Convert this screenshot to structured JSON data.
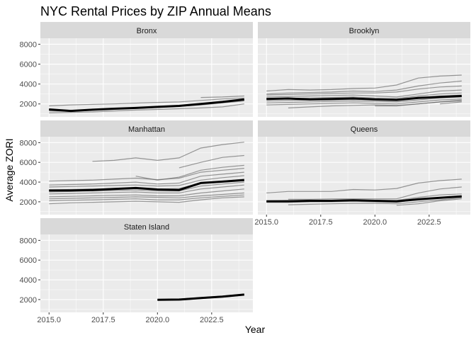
{
  "chart_data": {
    "type": "line",
    "title": "NYC Rental Prices by ZIP Annual Means",
    "xlabel": "Year",
    "ylabel": "Average ZORI",
    "xlim": [
      2014.6,
      2024.4
    ],
    "ylim": [
      700,
      8600
    ],
    "x_ticks": [
      2015,
      2017.5,
      2020,
      2022.5
    ],
    "x_tick_labels": [
      "2015.0",
      "2017.5",
      "2020.0",
      "2022.5"
    ],
    "y_ticks": [
      2000,
      4000,
      6000,
      8000
    ],
    "y_tick_labels": [
      "2000",
      "4000",
      "6000",
      "8000"
    ],
    "colors": {
      "panel_bg": "#ebebeb",
      "strip_bg": "#d9d9d9",
      "grid_major": "#ffffff",
      "zip_line": "#595959",
      "mean_line": "#000000"
    },
    "facets": [
      {
        "name": "Bronx",
        "zip_series": [
          {
            "x": [
              2015,
              2016,
              2017,
              2018,
              2019,
              2020,
              2021,
              2022,
              2023,
              2024
            ],
            "y": [
              1800,
              1900,
              1950,
              2000,
              2080,
              2150,
              2200,
              2350,
              2500,
              2600
            ]
          },
          {
            "x": [
              2015,
              2016,
              2017,
              2018,
              2019,
              2020,
              2021,
              2022,
              2023,
              2024
            ],
            "y": [
              1100,
              1150,
              1200,
              1300,
              1380,
              1450,
              1520,
              1600,
              1700,
              2000
            ]
          },
          {
            "x": [
              2015,
              2016,
              2017,
              2018,
              2019,
              2020,
              2021,
              2022,
              2023,
              2024
            ],
            "y": [
              1300,
              1250,
              1400,
              1500,
              1550,
              1650,
              1750,
              1900,
              2100,
              2300
            ]
          },
          {
            "x": [
              2022,
              2023,
              2024
            ],
            "y": [
              2650,
              2700,
              2800
            ]
          }
        ],
        "mean": {
          "x": [
            2015,
            2016,
            2017,
            2018,
            2019,
            2020,
            2021,
            2022,
            2023,
            2024
          ],
          "y": [
            1450,
            1300,
            1420,
            1520,
            1600,
            1700,
            1800,
            2000,
            2200,
            2450
          ]
        }
      },
      {
        "name": "Brooklyn",
        "zip_series": [
          {
            "x": [
              2015,
              2016,
              2017,
              2018,
              2019,
              2020,
              2021,
              2022,
              2023,
              2024
            ],
            "y": [
              3300,
              3450,
              3400,
              3450,
              3550,
              3600,
              3900,
              4600,
              4800,
              4900
            ]
          },
          {
            "x": [
              2015,
              2016,
              2017,
              2018,
              2019,
              2020,
              2021,
              2022,
              2023,
              2024
            ],
            "y": [
              3000,
              3100,
              3150,
              3200,
              3300,
              3250,
              3400,
              3800,
              4100,
              4300
            ]
          },
          {
            "x": [
              2015,
              2016,
              2017,
              2018,
              2019,
              2020,
              2021,
              2022,
              2023,
              2024
            ],
            "y": [
              2900,
              2950,
              3000,
              3050,
              3100,
              3100,
              3200,
              3500,
              3700,
              3800
            ]
          },
          {
            "x": [
              2015,
              2016,
              2017,
              2018,
              2019,
              2020,
              2021,
              2022,
              2023,
              2024
            ],
            "y": [
              2700,
              2750,
              2800,
              2850,
              2900,
              2800,
              2700,
              3000,
              3300,
              3400
            ]
          },
          {
            "x": [
              2015,
              2016,
              2017,
              2018,
              2019,
              2020,
              2021,
              2022,
              2023,
              2024
            ],
            "y": [
              2500,
              2550,
              2600,
              2650,
              2700,
              2600,
              2550,
              2800,
              3000,
              3100
            ]
          },
          {
            "x": [
              2015,
              2016,
              2017,
              2018,
              2019,
              2020,
              2021,
              2022,
              2023,
              2024
            ],
            "y": [
              2300,
              2350,
              2400,
              2400,
              2450,
              2400,
              2350,
              2600,
              2800,
              2900
            ]
          },
          {
            "x": [
              2015,
              2016,
              2017,
              2018,
              2019,
              2020,
              2021,
              2022,
              2023,
              2024
            ],
            "y": [
              2100,
              2150,
              2200,
              2250,
              2300,
              2250,
              2200,
              2400,
              2600,
              2700
            ]
          },
          {
            "x": [
              2015,
              2016,
              2017,
              2018,
              2019,
              2020,
              2021,
              2022,
              2023,
              2024
            ],
            "y": [
              1900,
              1950,
              2000,
              2050,
              2100,
              2050,
              2000,
              2200,
              2400,
              2500
            ]
          },
          {
            "x": [
              2016,
              2017,
              2018,
              2019,
              2020,
              2021,
              2022,
              2023,
              2024
            ],
            "y": [
              1600,
              1700,
              1800,
              1850,
              1900,
              1850,
              2000,
              2200,
              2300
            ]
          },
          {
            "x": [
              2020,
              2021,
              2022,
              2023,
              2024
            ],
            "y": [
              1800,
              1800,
              2000,
              2200,
              2400
            ]
          },
          {
            "x": [
              2023,
              2024
            ],
            "y": [
              2000,
              2200
            ]
          }
        ],
        "mean": {
          "x": [
            2015,
            2016,
            2017,
            2018,
            2019,
            2020,
            2021,
            2022,
            2023,
            2024
          ],
          "y": [
            2500,
            2550,
            2450,
            2500,
            2550,
            2450,
            2400,
            2600,
            2700,
            2800
          ]
        }
      },
      {
        "name": "Manhattan",
        "zip_series": [
          {
            "x": [
              2017,
              2018,
              2019,
              2020,
              2021,
              2022,
              2023,
              2024
            ],
            "y": [
              6100,
              6200,
              6450,
              6200,
              6450,
              7450,
              7800,
              8050
            ]
          },
          {
            "x": [
              2021,
              2022,
              2023,
              2024
            ],
            "y": [
              5450,
              6000,
              6500,
              6700
            ]
          },
          {
            "x": [
              2019,
              2020,
              2021,
              2022,
              2023,
              2024
            ],
            "y": [
              4600,
              4200,
              4500,
              5200,
              5500,
              5700
            ]
          },
          {
            "x": [
              2015,
              2016,
              2017,
              2018,
              2019,
              2020,
              2021,
              2022,
              2023,
              2024
            ],
            "y": [
              4100,
              4150,
              4200,
              4300,
              4400,
              4250,
              4400,
              5000,
              5200,
              5400
            ]
          },
          {
            "x": [
              2015,
              2016,
              2017,
              2018,
              2019,
              2020,
              2021,
              2022,
              2023,
              2024
            ],
            "y": [
              3700,
              3750,
              3800,
              3900,
              4000,
              3800,
              3900,
              4600,
              4800,
              5000
            ]
          },
          {
            "x": [
              2015,
              2016,
              2017,
              2018,
              2019,
              2020,
              2021,
              2022,
              2023,
              2024
            ],
            "y": [
              3500,
              3550,
              3600,
              3650,
              3700,
              3600,
              3650,
              4200,
              4450,
              4650
            ]
          },
          {
            "x": [
              2015,
              2016,
              2017,
              2018,
              2019,
              2020,
              2021,
              2022,
              2023,
              2024
            ],
            "y": [
              3200,
              3250,
              3300,
              3350,
              3400,
              3300,
              3350,
              3900,
              4100,
              4300
            ]
          },
          {
            "x": [
              2015,
              2016,
              2017,
              2018,
              2019,
              2020,
              2021,
              2022,
              2023,
              2024
            ],
            "y": [
              3000,
              3050,
              3100,
              3150,
              3200,
              3100,
              3100,
              3600,
              3800,
              4000
            ]
          },
          {
            "x": [
              2015,
              2016,
              2017,
              2018,
              2019,
              2020,
              2021,
              2022,
              2023,
              2024
            ],
            "y": [
              2800,
              2850,
              2900,
              2950,
              3000,
              2900,
              2900,
              3300,
              3500,
              3700
            ]
          },
          {
            "x": [
              2015,
              2016,
              2017,
              2018,
              2019,
              2020,
              2021,
              2022,
              2023,
              2024
            ],
            "y": [
              2500,
              2550,
              2600,
              2650,
              2700,
              2600,
              2600,
              2900,
              3100,
              3300
            ]
          },
          {
            "x": [
              2015,
              2016,
              2017,
              2018,
              2019,
              2020,
              2021,
              2022,
              2023,
              2024
            ],
            "y": [
              2300,
              2350,
              2400,
              2450,
              2500,
              2450,
              2400,
              2600,
              2750,
              2900
            ]
          },
          {
            "x": [
              2015,
              2016,
              2017,
              2018,
              2019,
              2020,
              2021,
              2022,
              2023,
              2024
            ],
            "y": [
              2100,
              2150,
              2200,
              2250,
              2300,
              2200,
              2200,
              2400,
              2550,
              2700
            ]
          },
          {
            "x": [
              2015,
              2016,
              2017,
              2018,
              2019,
              2020,
              2021,
              2022,
              2023,
              2024
            ],
            "y": [
              1800,
              1900,
              1950,
              2000,
              2050,
              2000,
              1950,
              2200,
              2400,
              2500
            ]
          }
        ],
        "mean": {
          "x": [
            2015,
            2016,
            2017,
            2018,
            2019,
            2020,
            2021,
            2022,
            2023,
            2024
          ],
          "y": [
            3150,
            3150,
            3200,
            3300,
            3400,
            3250,
            3200,
            3900,
            4050,
            4200
          ]
        }
      },
      {
        "name": "Queens",
        "zip_series": [
          {
            "x": [
              2015,
              2016,
              2017,
              2018,
              2019,
              2020,
              2021,
              2022,
              2023,
              2024
            ],
            "y": [
              2900,
              3050,
              3050,
              3050,
              3250,
              3200,
              3350,
              3900,
              4150,
              4300
            ]
          },
          {
            "x": [
              2016,
              2017,
              2018,
              2019,
              2020,
              2021,
              2022,
              2023,
              2024
            ],
            "y": [
              2250,
              2250,
              2300,
              2300,
              2300,
              2300,
              2900,
              3300,
              3500
            ]
          },
          {
            "x": [
              2015,
              2016,
              2017,
              2018,
              2019,
              2020,
              2021,
              2022,
              2023,
              2024
            ],
            "y": [
              2100,
              2150,
              2150,
              2150,
              2200,
              2150,
              2150,
              2450,
              2700,
              2800
            ]
          },
          {
            "x": [
              2015,
              2016,
              2017,
              2018,
              2019,
              2020,
              2021,
              2022,
              2023,
              2024
            ],
            "y": [
              1950,
              1950,
              2000,
              2000,
              2050,
              2000,
              1950,
              2250,
              2450,
              2600
            ]
          },
          {
            "x": [
              2016,
              2017,
              2018,
              2019,
              2020,
              2021,
              2022,
              2023,
              2024
            ],
            "y": [
              1700,
              1750,
              1800,
              1850,
              1850,
              1800,
              2000,
              2200,
              2400
            ]
          },
          {
            "x": [
              2021,
              2022,
              2023,
              2024
            ],
            "y": [
              1650,
              1800,
              2100,
              2300
            ]
          }
        ],
        "mean": {
          "x": [
            2015,
            2016,
            2017,
            2018,
            2019,
            2020,
            2021,
            2022,
            2023,
            2024
          ],
          "y": [
            2050,
            2050,
            2100,
            2100,
            2150,
            2100,
            2050,
            2250,
            2400,
            2550
          ]
        }
      },
      {
        "name": "Staten Island",
        "zip_series": [
          {
            "x": [
              2020,
              2021,
              2022,
              2023,
              2024
            ],
            "y": [
              2000,
              2050,
              2200,
              2350,
              2550
            ]
          },
          {
            "x": [
              2020,
              2021,
              2022,
              2023,
              2024
            ],
            "y": [
              1950,
              1950,
              2100,
              2250,
              2450
            ]
          }
        ],
        "mean": {
          "x": [
            2020,
            2021,
            2022,
            2023,
            2024
          ],
          "y": [
            1980,
            2000,
            2150,
            2300,
            2500
          ]
        }
      }
    ]
  }
}
